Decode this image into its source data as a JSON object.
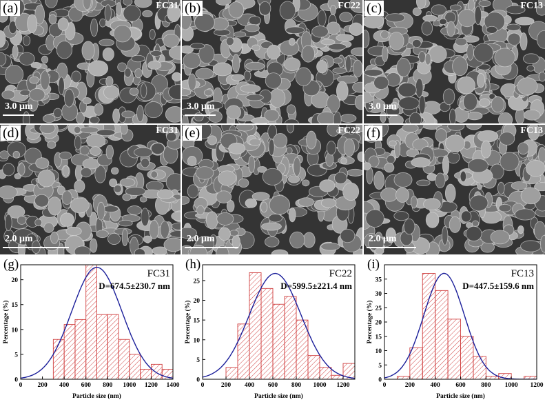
{
  "colors": {
    "bar_stroke": "#d04040",
    "fit_line": "#1b1f9a",
    "sem_bg": "#3a3a3a"
  },
  "sem_panels": [
    {
      "label": "(a)",
      "sample": "FC31",
      "scale": "3.0 μm"
    },
    {
      "label": "(b)",
      "sample": "FC22",
      "scale": "3.0 μm"
    },
    {
      "label": "(c)",
      "sample": "FC13",
      "scale": "3.0 μm"
    },
    {
      "label": "(d)",
      "sample": "FC31",
      "scale": "2.0 μm"
    },
    {
      "label": "(e)",
      "sample": "FC22",
      "scale": "2.0 μm"
    },
    {
      "label": "(f)",
      "sample": "FC13",
      "scale": "2.0 μm"
    }
  ],
  "chart_data": [
    {
      "type": "bar",
      "panel_label": "(g)",
      "title": "FC31",
      "annotation": "D=674.5±230.7 nm",
      "xlabel": "Particle size (nm)",
      "ylabel": "Percentage (%)",
      "xlim": [
        0,
        1400
      ],
      "ylim": [
        0,
        23
      ],
      "xticks": [
        0,
        200,
        400,
        600,
        800,
        1000,
        1200,
        1400
      ],
      "yticks": [
        0,
        5,
        10,
        15,
        20
      ],
      "bin_width": 100,
      "bin_starts": [
        300,
        400,
        500,
        600,
        700,
        800,
        900,
        1000,
        1100,
        1200,
        1300
      ],
      "values": [
        8,
        11,
        12,
        23,
        13,
        13,
        8,
        5,
        2,
        3,
        2
      ],
      "fit": {
        "mean": 700,
        "sigma": 230.7,
        "peak": 22.5
      }
    },
    {
      "type": "bar",
      "panel_label": "(h)",
      "title": "FC22",
      "annotation": "D=599.5±221.4 nm",
      "xlabel": "Particle size (nm)",
      "ylabel": "Percentage (%)",
      "xlim": [
        0,
        1300
      ],
      "ylim": [
        0,
        29
      ],
      "xticks": [
        0,
        200,
        400,
        600,
        800,
        1000,
        1200
      ],
      "yticks": [
        0,
        5,
        10,
        15,
        20,
        25
      ],
      "bin_width": 100,
      "bin_starts": [
        200,
        300,
        400,
        500,
        600,
        700,
        800,
        900,
        1000,
        1100,
        1200
      ],
      "values": [
        3,
        14,
        27,
        23,
        19,
        21,
        15,
        6,
        3,
        1,
        4
      ],
      "fit": {
        "mean": 620,
        "sigma": 221.4,
        "peak": 26.8
      }
    },
    {
      "type": "bar",
      "panel_label": "(i)",
      "title": "FC13",
      "annotation": "D=447.5±159.6 nm",
      "xlabel": "Particle size (nm)",
      "ylabel": "Percentage (%)",
      "xlim": [
        0,
        1200
      ],
      "ylim": [
        0,
        40
      ],
      "xticks": [
        0,
        200,
        400,
        600,
        800,
        1000,
        1200
      ],
      "yticks": [
        0,
        5,
        10,
        15,
        20,
        25,
        30,
        35
      ],
      "bin_width": 100,
      "bin_starts": [
        100,
        200,
        300,
        400,
        500,
        600,
        700,
        800,
        900,
        1100
      ],
      "values": [
        1,
        11,
        37,
        31,
        21,
        15,
        8,
        1,
        2,
        1
      ],
      "fit": {
        "mean": 470,
        "sigma": 159.6,
        "peak": 37
      }
    }
  ]
}
